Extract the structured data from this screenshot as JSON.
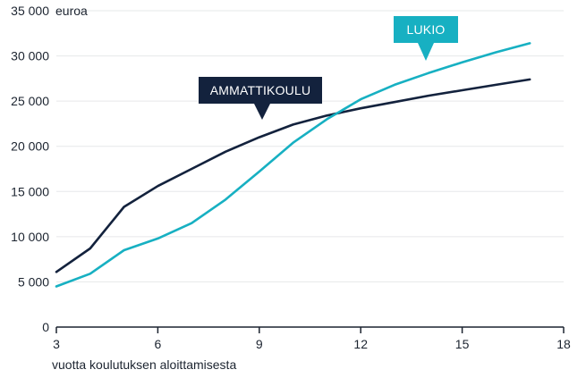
{
  "chart_data": {
    "type": "line",
    "ylabel": "euroa",
    "xlabel": "vuotta koulutuksen aloittamisesta",
    "xlim": [
      3,
      18
    ],
    "ylim": [
      0,
      35000
    ],
    "x_ticks": [
      3,
      6,
      9,
      12,
      15,
      18
    ],
    "y_ticks": [
      0,
      5000,
      10000,
      15000,
      20000,
      25000,
      30000,
      35000
    ],
    "y_tick_labels": [
      "0",
      "5 000",
      "10 000",
      "15 000",
      "20 000",
      "25 000",
      "30 000",
      "35 000"
    ],
    "grid": "horizontal",
    "series": [
      {
        "name": "AMMATTIKOULU",
        "color": "#13223d",
        "x": [
          3,
          4,
          5,
          6,
          7,
          8,
          9,
          10,
          11,
          12,
          13,
          14,
          15,
          16,
          17
        ],
        "values": [
          6100,
          8700,
          13300,
          15600,
          17500,
          19400,
          21000,
          22400,
          23400,
          24200,
          24900,
          25600,
          26200,
          26800,
          27400
        ]
      },
      {
        "name": "LUKIO",
        "color": "#17b0c2",
        "x": [
          3,
          4,
          5,
          6,
          7,
          8,
          9,
          10,
          11,
          12,
          13,
          14,
          15,
          16,
          17
        ],
        "values": [
          4500,
          5900,
          8500,
          9800,
          11500,
          14100,
          17200,
          20400,
          23000,
          25200,
          26800,
          28100,
          29300,
          30400,
          31400
        ]
      }
    ]
  }
}
